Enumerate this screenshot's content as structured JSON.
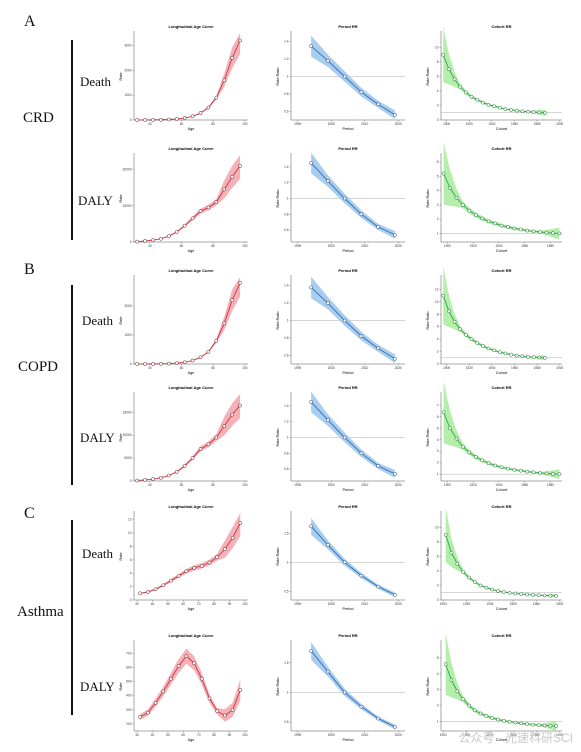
{
  "labels": {
    "sections": [
      "A",
      "B",
      "C"
    ],
    "diseases": [
      "CRD",
      "COPD",
      "Asthma"
    ],
    "measures": [
      "Death",
      "DALY"
    ]
  },
  "watermark": "公众号 · 光速科研SCI",
  "colors": {
    "age": "#cc3340",
    "age_band": "#f2a4ac",
    "period": "#2f6fb5",
    "period_band": "#9ac4ec",
    "cohort": "#2aa84a",
    "cohort_band": "#a6ec9a"
  },
  "chart_data": [
    {
      "type": "line",
      "panel": "A-Death-age",
      "title": "Longitudinal Age Curve",
      "xlabel": "Age",
      "ylabel": "Rate",
      "x": [
        32,
        37,
        42,
        47,
        52,
        57,
        62,
        67,
        72,
        77,
        82,
        87,
        92,
        97
      ],
      "values": [
        2,
        4,
        6,
        10,
        20,
        40,
        80,
        150,
        280,
        500,
        900,
        1600,
        2500,
        3200
      ],
      "xticks": [
        40,
        60,
        80,
        100
      ],
      "yticks": [
        0,
        1000,
        2000,
        3000
      ],
      "ylim": [
        0,
        3500
      ]
    },
    {
      "type": "line",
      "panel": "A-Death-period",
      "title": "Period RR",
      "xlabel": "Period",
      "ylabel": "Rate Ratio",
      "x": [
        1994,
        1999,
        2004,
        2009,
        2014,
        2019
      ],
      "values": [
        1.35,
        1.18,
        1.0,
        0.82,
        0.68,
        0.56
      ],
      "xticks": [
        1990,
        2000,
        2010,
        2020
      ],
      "yticks": [
        0.6,
        0.8,
        1.0,
        1.2,
        1.4
      ],
      "ylim": [
        0.5,
        1.5
      ],
      "ref": 1.0
    },
    {
      "type": "line",
      "panel": "A-Death-cohort",
      "title": "Cohort RR",
      "xlabel": "Cohort",
      "ylabel": "Rate Ratio",
      "x": [
        1897,
        1902,
        1907,
        1912,
        1917,
        1922,
        1927,
        1932,
        1937,
        1942,
        1947,
        1952,
        1957,
        1962,
        1967,
        1972,
        1977,
        1982,
        1987
      ],
      "values": [
        9,
        7,
        5.6,
        4.6,
        3.8,
        3.2,
        2.8,
        2.4,
        2.1,
        1.9,
        1.7,
        1.5,
        1.4,
        1.3,
        1.2,
        1.15,
        1.1,
        1.05,
        1.0
      ],
      "xticks": [
        1900,
        1920,
        1940,
        1960,
        1980,
        2000
      ],
      "yticks": [
        0,
        2,
        4,
        6,
        8,
        10
      ],
      "ylim": [
        0,
        12
      ],
      "ref": 1.0
    },
    {
      "type": "line",
      "panel": "A-DALY-age",
      "title": "Longitudinal Age Curve",
      "xlabel": "Age",
      "ylabel": "Rate",
      "x": [
        32,
        37,
        42,
        47,
        52,
        57,
        62,
        67,
        72,
        77,
        82,
        87,
        92,
        97
      ],
      "values": [
        100,
        300,
        500,
        900,
        1600,
        2800,
        4500,
        6500,
        8500,
        9500,
        11000,
        14500,
        18000,
        21000
      ],
      "xticks": [
        40,
        60,
        80,
        100
      ],
      "yticks": [
        0,
        10000,
        20000
      ],
      "ylim": [
        0,
        24000
      ]
    },
    {
      "type": "line",
      "panel": "A-DALY-period",
      "title": "Period RR",
      "xlabel": "Period",
      "ylabel": "Rate Ratio",
      "x": [
        1994,
        1999,
        2004,
        2009,
        2014,
        2019
      ],
      "values": [
        1.45,
        1.22,
        1.0,
        0.8,
        0.64,
        0.54
      ],
      "xticks": [
        1990,
        2000,
        2010,
        2020
      ],
      "yticks": [
        0.6,
        0.8,
        1.0,
        1.2,
        1.4
      ],
      "ylim": [
        0.45,
        1.55
      ],
      "ref": 1.0
    },
    {
      "type": "line",
      "panel": "A-DALY-cohort",
      "title": "Cohort RR",
      "xlabel": "Cohort",
      "ylabel": "Rate Ratio",
      "x": [
        1897,
        1902,
        1907,
        1912,
        1917,
        1922,
        1927,
        1932,
        1937,
        1942,
        1947,
        1952,
        1957,
        1962,
        1967,
        1972,
        1977,
        1982,
        1987
      ],
      "values": [
        5.2,
        4.2,
        3.5,
        3.0,
        2.6,
        2.3,
        2.05,
        1.85,
        1.7,
        1.55,
        1.45,
        1.35,
        1.28,
        1.2,
        1.15,
        1.1,
        1.06,
        1.02,
        1.0
      ],
      "xticks": [
        1900,
        1920,
        1940,
        1960,
        1980
      ],
      "yticks": [
        1,
        2,
        3,
        4,
        5,
        6
      ],
      "ylim": [
        0.4,
        6.5
      ],
      "ref": 1.0
    },
    {
      "type": "line",
      "panel": "B-Death-age",
      "title": "Longitudinal Age Curve",
      "xlabel": "Age",
      "ylabel": "Rate",
      "x": [
        32,
        37,
        42,
        47,
        52,
        57,
        62,
        67,
        72,
        77,
        82,
        87,
        92,
        97
      ],
      "values": [
        1,
        2,
        4,
        7,
        15,
        30,
        60,
        120,
        230,
        420,
        800,
        1400,
        2200,
        2800
      ],
      "xticks": [
        40,
        60,
        80,
        100
      ],
      "yticks": [
        0,
        1000,
        2000
      ],
      "ylim": [
        0,
        3000
      ]
    },
    {
      "type": "line",
      "panel": "B-Death-period",
      "title": "Period RR",
      "xlabel": "Period",
      "ylabel": "Rate Ratio",
      "x": [
        1994,
        1999,
        2004,
        2009,
        2014,
        2019
      ],
      "values": [
        1.38,
        1.2,
        1.0,
        0.82,
        0.68,
        0.56
      ],
      "xticks": [
        1990,
        2000,
        2010,
        2020
      ],
      "yticks": [
        0.6,
        0.8,
        1.0,
        1.2,
        1.4
      ],
      "ylim": [
        0.5,
        1.5
      ],
      "ref": 1.0
    },
    {
      "type": "line",
      "panel": "B-Death-cohort",
      "title": "Cohort RR",
      "xlabel": "Cohort",
      "ylabel": "Rate Ratio",
      "x": [
        1897,
        1902,
        1907,
        1912,
        1917,
        1922,
        1927,
        1932,
        1937,
        1942,
        1947,
        1952,
        1957,
        1962,
        1967,
        1972,
        1977,
        1982,
        1987
      ],
      "values": [
        11,
        8.5,
        6.8,
        5.6,
        4.7,
        4.0,
        3.4,
        2.9,
        2.5,
        2.2,
        1.9,
        1.7,
        1.5,
        1.35,
        1.25,
        1.15,
        1.1,
        1.05,
        1.0
      ],
      "xticks": [
        1900,
        1920,
        1940,
        1960,
        1980,
        2000
      ],
      "yticks": [
        0,
        2,
        4,
        6,
        8,
        10,
        12
      ],
      "ylim": [
        0,
        14
      ],
      "ref": 1.0
    },
    {
      "type": "line",
      "panel": "B-DALY-age",
      "title": "Longitudinal Age Curve",
      "xlabel": "Age",
      "ylabel": "Rate",
      "x": [
        32,
        37,
        42,
        47,
        52,
        57,
        62,
        67,
        72,
        77,
        82,
        87,
        92,
        97
      ],
      "values": [
        100,
        250,
        400,
        700,
        1200,
        2000,
        3300,
        5000,
        7000,
        8000,
        9500,
        12000,
        14500,
        16500
      ],
      "xticks": [
        40,
        60,
        80,
        100
      ],
      "yticks": [
        0,
        5000,
        10000,
        15000
      ],
      "ylim": [
        0,
        19000
      ]
    },
    {
      "type": "line",
      "panel": "B-DALY-period",
      "title": "Period RR",
      "xlabel": "Period",
      "ylabel": "Rate Ratio",
      "x": [
        1994,
        1999,
        2004,
        2009,
        2014,
        2019
      ],
      "values": [
        1.45,
        1.22,
        1.0,
        0.8,
        0.64,
        0.54
      ],
      "xticks": [
        1990,
        2000,
        2010,
        2020
      ],
      "yticks": [
        0.6,
        0.8,
        1.0,
        1.2,
        1.4
      ],
      "ylim": [
        0.45,
        1.55
      ],
      "ref": 1.0
    },
    {
      "type": "line",
      "panel": "B-DALY-cohort",
      "title": "Cohort RR",
      "xlabel": "Cohort",
      "ylabel": "Rate Ratio",
      "x": [
        1897,
        1902,
        1907,
        1912,
        1917,
        1922,
        1927,
        1932,
        1937,
        1942,
        1947,
        1952,
        1957,
        1962,
        1967,
        1972,
        1977,
        1982,
        1987
      ],
      "values": [
        6.4,
        5.0,
        4.1,
        3.4,
        2.9,
        2.5,
        2.2,
        1.95,
        1.75,
        1.6,
        1.48,
        1.38,
        1.3,
        1.22,
        1.16,
        1.1,
        1.06,
        1.02,
        1.0
      ],
      "xticks": [
        1900,
        1920,
        1940,
        1960,
        1980
      ],
      "yticks": [
        1,
        2,
        3,
        4,
        5,
        6,
        7
      ],
      "ylim": [
        0.4,
        8
      ],
      "ref": 1.0
    },
    {
      "type": "line",
      "panel": "C-Death-age",
      "title": "Longitudinal Age Curve",
      "xlabel": "Age",
      "ylabel": "Rate",
      "x": [
        32,
        37,
        42,
        47,
        52,
        57,
        62,
        67,
        72,
        77,
        82,
        87,
        92,
        97
      ],
      "values": [
        1.0,
        1.2,
        1.6,
        2.2,
        2.9,
        3.6,
        4.3,
        4.8,
        5.1,
        5.6,
        6.4,
        7.6,
        9.3,
        11.5
      ],
      "xticks": [
        30,
        40,
        50,
        60,
        70,
        80,
        90,
        100
      ],
      "yticks": [
        0,
        2,
        4,
        6,
        8,
        10,
        12
      ],
      "ylim": [
        0,
        13
      ]
    },
    {
      "type": "line",
      "panel": "C-Death-period",
      "title": "Period RR",
      "xlabel": "Period",
      "ylabel": "Rate Ratio",
      "x": [
        1994,
        1999,
        2004,
        2009,
        2014,
        2019
      ],
      "values": [
        1.62,
        1.3,
        1.0,
        0.77,
        0.58,
        0.44
      ],
      "xticks": [
        1990,
        2000,
        2010,
        2020
      ],
      "yticks": [
        0.5,
        1.0,
        1.5
      ],
      "ylim": [
        0.35,
        1.85
      ],
      "ref": 1.0
    },
    {
      "type": "line",
      "panel": "C-Death-cohort",
      "title": "Cohort RR",
      "xlabel": "Cohort",
      "ylabel": "Rate Ratio",
      "x": [
        1902,
        1907,
        1912,
        1917,
        1922,
        1927,
        1932,
        1937,
        1942,
        1947,
        1952,
        1957,
        1962,
        1967,
        1972,
        1977,
        1982,
        1987,
        1992,
        1997
      ],
      "values": [
        9,
        6.5,
        5.0,
        3.9,
        3.1,
        2.5,
        2.0,
        1.7,
        1.45,
        1.25,
        1.1,
        1.0,
        0.9,
        0.82,
        0.76,
        0.7,
        0.66,
        0.62,
        0.6,
        0.58
      ],
      "xticks": [
        1900,
        1920,
        1940,
        1960,
        1980,
        2000
      ],
      "yticks": [
        0,
        2,
        4,
        6,
        8,
        10
      ],
      "ylim": [
        0,
        12
      ],
      "ref": 1.0
    },
    {
      "type": "line",
      "panel": "C-DALY-age",
      "title": "Longitudinal Age Curve",
      "xlabel": "Age",
      "ylabel": "Rate",
      "x": [
        32,
        37,
        42,
        47,
        52,
        57,
        62,
        67,
        72,
        77,
        82,
        87,
        92,
        97
      ],
      "values": [
        250,
        280,
        350,
        430,
        520,
        610,
        680,
        630,
        520,
        380,
        290,
        260,
        300,
        440
      ],
      "xticks": [
        30,
        40,
        50,
        60,
        70,
        80,
        90,
        100
      ],
      "yticks": [
        200,
        300,
        400,
        500,
        600,
        700
      ],
      "ylim": [
        150,
        780
      ]
    },
    {
      "type": "line",
      "panel": "C-DALY-period",
      "title": "Period RR",
      "xlabel": "Period",
      "ylabel": "Rate Ratio",
      "x": [
        1994,
        1999,
        2004,
        2009,
        2014,
        2019
      ],
      "values": [
        1.7,
        1.35,
        1.0,
        0.76,
        0.56,
        0.42
      ],
      "xticks": [
        1990,
        2000,
        2010,
        2020
      ],
      "yticks": [
        0.5,
        1.0,
        1.5
      ],
      "ylim": [
        0.35,
        1.85
      ],
      "ref": 1.0
    },
    {
      "type": "line",
      "panel": "C-DALY-cohort",
      "title": "Cohort RR",
      "xlabel": "Cohort",
      "ylabel": "Rate Ratio",
      "x": [
        1902,
        1907,
        1912,
        1917,
        1922,
        1927,
        1932,
        1937,
        1942,
        1947,
        1952,
        1957,
        1962,
        1967,
        1972,
        1977,
        1982,
        1987,
        1992,
        1997
      ],
      "values": [
        4.6,
        3.6,
        2.9,
        2.4,
        2.0,
        1.7,
        1.5,
        1.35,
        1.22,
        1.12,
        1.04,
        0.98,
        0.93,
        0.88,
        0.84,
        0.8,
        0.77,
        0.75,
        0.73,
        0.72
      ],
      "xticks": [
        1900,
        1920,
        1940,
        1960,
        1980,
        2000
      ],
      "yticks": [
        1,
        2,
        3,
        4,
        5
      ],
      "ylim": [
        0.4,
        6
      ],
      "ref": 1.0
    }
  ]
}
